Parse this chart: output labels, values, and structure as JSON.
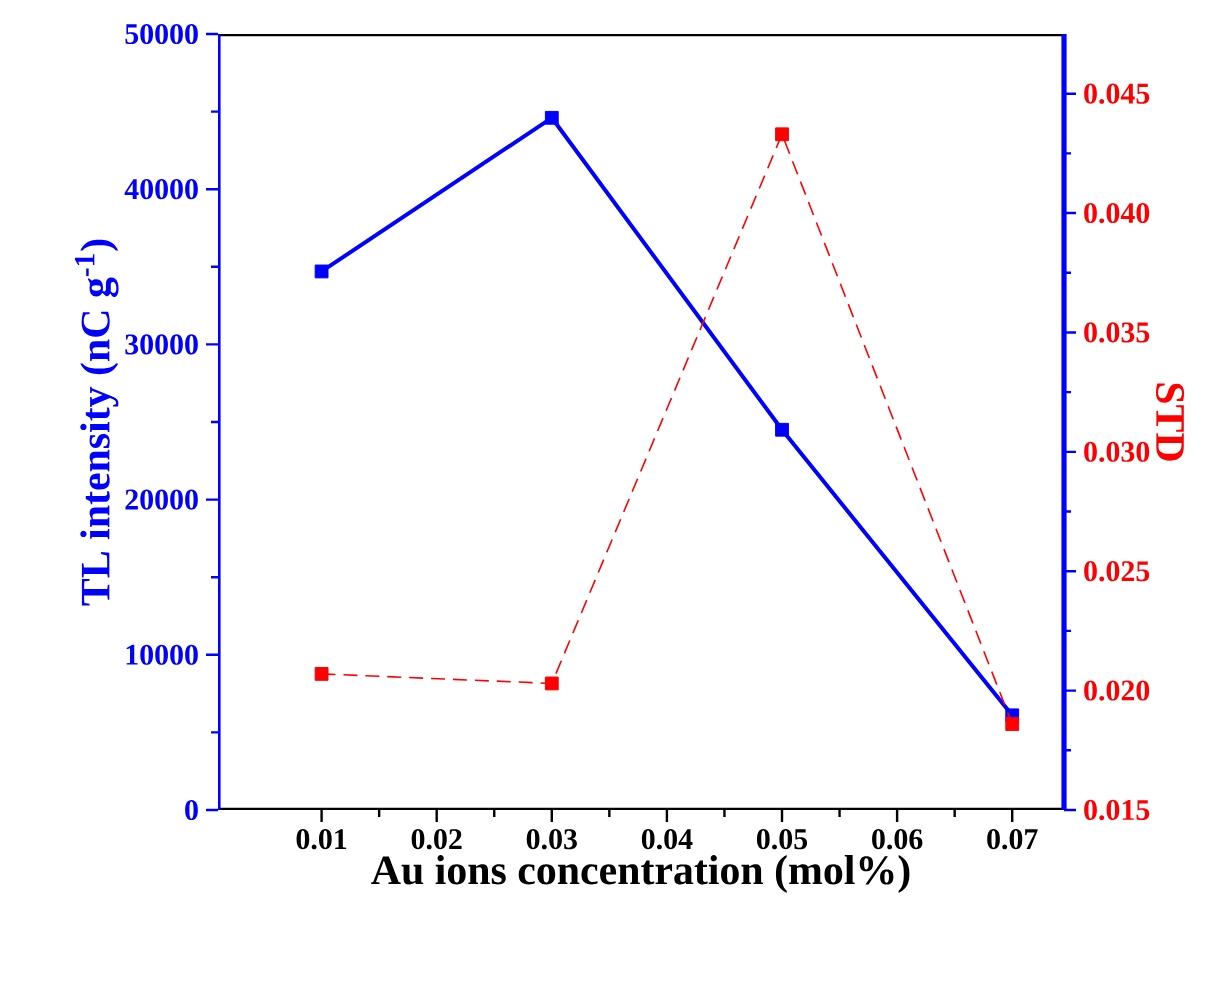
{
  "chart_data": {
    "type": "line",
    "xlabel": "Au ions concentration (mol%)",
    "ylabel": "TL intensity (nC g$^{-1}$)",
    "y2label": "STD",
    "x": [
      0.01,
      0.03,
      0.05,
      0.07
    ],
    "series": [
      {
        "color": "#0000ff",
        "values": [
          34700,
          44600,
          24500,
          6100
        ],
        "marker": "square",
        "line_style": "solid"
      },
      {
        "color": "#ff0000",
        "values": [
          0.0207,
          0.0203,
          0.0433,
          0.0186
        ],
        "axis": "y2",
        "marker": "square",
        "line_style": "dashed"
      }
    ],
    "xlim": [
      0.001,
      0.0745
    ],
    "xticks": [
      0.01,
      0.02,
      0.03,
      0.04,
      0.05,
      0.06,
      0.07
    ],
    "ylim": [
      0,
      50000
    ],
    "yticks": [
      0,
      10000,
      20000,
      30000,
      40000,
      50000
    ],
    "y2lim": [
      0.015,
      0.0475
    ],
    "y2ticks": [
      0.015,
      {
        "value": 0.02,
        "label": "0.020"
      },
      0.025,
      {
        "value": 0.03,
        "label": "0.030"
      },
      0.035,
      {
        "value": 0.04,
        "label": "0.040"
      },
      0.045
    ]
  }
}
